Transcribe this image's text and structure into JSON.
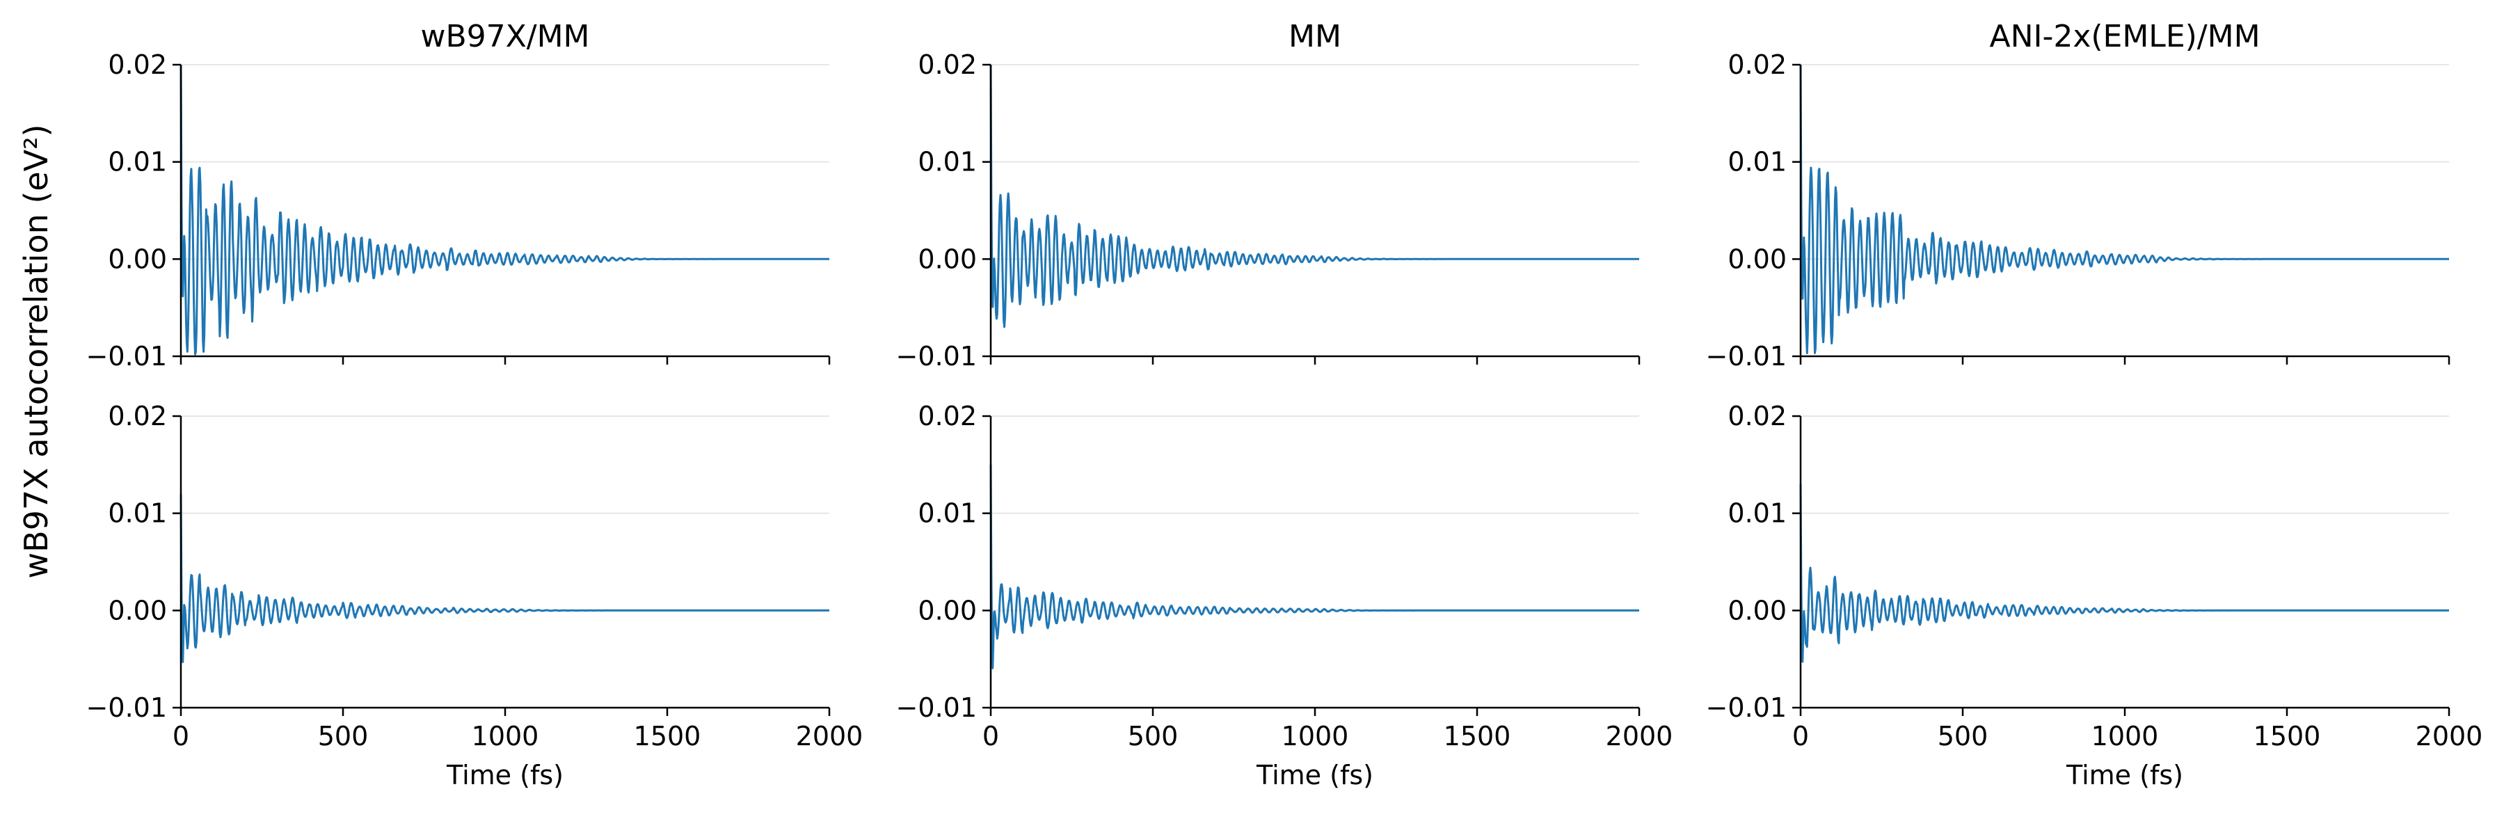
{
  "figure": {
    "ylabel": "wB97X autocorrelation (eV²)",
    "xlabel": "Time (fs)"
  },
  "style": {
    "line_color": "#1f77b4",
    "grid_color": "#e6e6e6",
    "axis_color": "#000000"
  },
  "chart_data": [
    {
      "type": "line",
      "row": 0,
      "col": 0,
      "title": "wB97X/MM",
      "xlabel": "",
      "ylabel": "",
      "xlim": [
        0,
        2000
      ],
      "ylim": [
        -0.01,
        0.02
      ],
      "xticks": [
        0,
        500,
        1000,
        1500,
        2000
      ],
      "show_xticklabels": false,
      "yticks": [
        -0.01,
        0.0,
        0.01,
        0.02
      ],
      "ytick_labels": [
        "−0.01",
        "0.00",
        "0.01",
        "0.02"
      ],
      "grid": "y",
      "series": [
        {
          "amp0": 0.0095,
          "decay_fs": 360,
          "period_fs": 25,
          "peak0": 0.02,
          "settle_fs": 1300
        }
      ]
    },
    {
      "type": "line",
      "row": 0,
      "col": 1,
      "title": "MM",
      "xlabel": "",
      "ylabel": "",
      "xlim": [
        0,
        2000
      ],
      "ylim": [
        -0.01,
        0.02
      ],
      "xticks": [
        0,
        500,
        1000,
        1500,
        2000
      ],
      "show_xticklabels": false,
      "yticks": [
        -0.01,
        0.0,
        0.01,
        0.02
      ],
      "ytick_labels": [
        "−0.01",
        "0.00",
        "0.01",
        "0.02"
      ],
      "grid": "y",
      "series": [
        {
          "amp0": 0.0065,
          "decay_fs": 330,
          "period_fs": 24,
          "peak0": 0.02,
          "settle_fs": 1050
        }
      ]
    },
    {
      "type": "line",
      "row": 0,
      "col": 2,
      "title": "ANI-2x(EMLE)/MM",
      "xlabel": "",
      "ylabel": "",
      "xlim": [
        0,
        2000
      ],
      "ylim": [
        -0.01,
        0.02
      ],
      "xticks": [
        0,
        500,
        1000,
        1500,
        2000
      ],
      "show_xticklabels": false,
      "yticks": [
        -0.01,
        0.0,
        0.01,
        0.02
      ],
      "ytick_labels": [
        "−0.01",
        "0.00",
        "0.01",
        "0.02"
      ],
      "grid": "y",
      "series": [
        {
          "amp0": 0.009,
          "decay_fs": 330,
          "period_fs": 25,
          "peak0": 0.02,
          "settle_fs": 1100
        }
      ]
    },
    {
      "type": "line",
      "row": 1,
      "col": 0,
      "title": "",
      "xlabel": "Time (fs)",
      "ylabel": "",
      "xlim": [
        0,
        2000
      ],
      "ylim": [
        -0.01,
        0.02
      ],
      "xticks": [
        0,
        500,
        1000,
        1500,
        2000
      ],
      "xtick_labels": [
        "0",
        "500",
        "1000",
        "1500",
        "2000"
      ],
      "show_xticklabels": true,
      "yticks": [
        -0.01,
        0.0,
        0.01,
        0.02
      ],
      "ytick_labels": [
        "−0.01",
        "0.00",
        "0.01",
        "0.02"
      ],
      "grid": "y",
      "series": [
        {
          "amp0": 0.0035,
          "decay_fs": 300,
          "period_fs": 26,
          "peak0": 0.012,
          "settle_fs": 1050
        }
      ]
    },
    {
      "type": "line",
      "row": 1,
      "col": 1,
      "title": "",
      "xlabel": "Time (fs)",
      "ylabel": "",
      "xlim": [
        0,
        2000
      ],
      "ylim": [
        -0.01,
        0.02
      ],
      "xticks": [
        0,
        500,
        1000,
        1500,
        2000
      ],
      "xtick_labels": [
        "0",
        "500",
        "1000",
        "1500",
        "2000"
      ],
      "show_xticklabels": true,
      "yticks": [
        -0.01,
        0.0,
        0.01,
        0.02
      ],
      "ytick_labels": [
        "−0.01",
        "0.00",
        "0.01",
        "0.02"
      ],
      "grid": "y",
      "series": [
        {
          "amp0": 0.0025,
          "decay_fs": 330,
          "period_fs": 26,
          "peak0": 0.015,
          "settle_fs": 1050
        }
      ]
    },
    {
      "type": "line",
      "row": 1,
      "col": 2,
      "title": "",
      "xlabel": "Time (fs)",
      "ylabel": "",
      "xlim": [
        0,
        2000
      ],
      "ylim": [
        -0.01,
        0.02
      ],
      "xticks": [
        0,
        500,
        1000,
        1500,
        2000
      ],
      "xtick_labels": [
        "0",
        "500",
        "1000",
        "1500",
        "2000"
      ],
      "show_xticklabels": true,
      "yticks": [
        -0.01,
        0.0,
        0.01,
        0.02
      ],
      "ytick_labels": [
        "−0.01",
        "0.00",
        "0.01",
        "0.02"
      ],
      "grid": "y",
      "series": [
        {
          "amp0": 0.0038,
          "decay_fs": 320,
          "period_fs": 25,
          "peak0": 0.013,
          "settle_fs": 1050
        }
      ]
    }
  ]
}
